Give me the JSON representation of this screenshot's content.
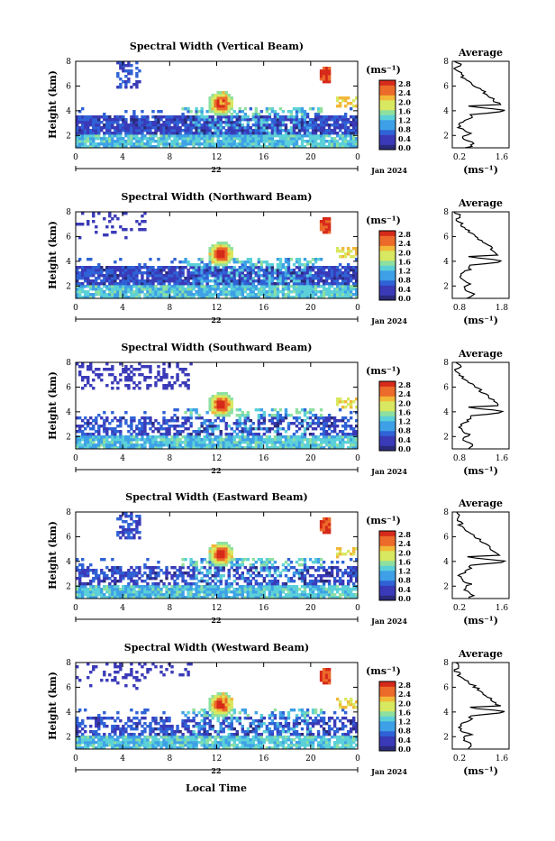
{
  "chart_data": {
    "type": "heatmap",
    "colorbar": {
      "unit": "(ms⁻¹)",
      "ticks": [
        "2.8",
        "2.4",
        "2.0",
        "1.6",
        "1.2",
        "0.8",
        "0.4",
        "0.0"
      ],
      "range": [
        0.0,
        2.8
      ]
    },
    "x_ticks": [
      "0",
      "4",
      "8",
      "12",
      "16",
      "20",
      "0"
    ],
    "x_range": [
      0,
      24
    ],
    "date_day": "22",
    "date_label": "Jan 2024",
    "y_label": "Height (km)",
    "y_ticks": [
      "2",
      "4",
      "6",
      "8"
    ],
    "y_range": [
      1,
      8
    ],
    "x_label": "Local Time",
    "profile_title": "Average",
    "profile_unit": "(ms⁻¹)",
    "colors": [
      "#2a2a7a",
      "#3a3ab8",
      "#2f62d6",
      "#3ea0e6",
      "#5cd0d8",
      "#8ee0a0",
      "#d8e860",
      "#f2b838",
      "#ec6a2a",
      "#d62a1a"
    ],
    "panels": [
      {
        "title": "Spectral Width (Vertical Beam)",
        "profile_ticks": [
          "0.2",
          "1.6"
        ]
      },
      {
        "title": "Spectral Width (Northward Beam)",
        "profile_ticks": [
          "0.8",
          "1.8"
        ]
      },
      {
        "title": "Spectral Width (Southward Beam)",
        "profile_ticks": [
          "0.8",
          "1.6"
        ]
      },
      {
        "title": "Spectral Width (Eastward Beam)",
        "profile_ticks": [
          "0.2",
          "1.6"
        ]
      },
      {
        "title": "Spectral Width (Westward Beam)",
        "profile_ticks": [
          "0.2",
          "1.6"
        ]
      }
    ]
  }
}
